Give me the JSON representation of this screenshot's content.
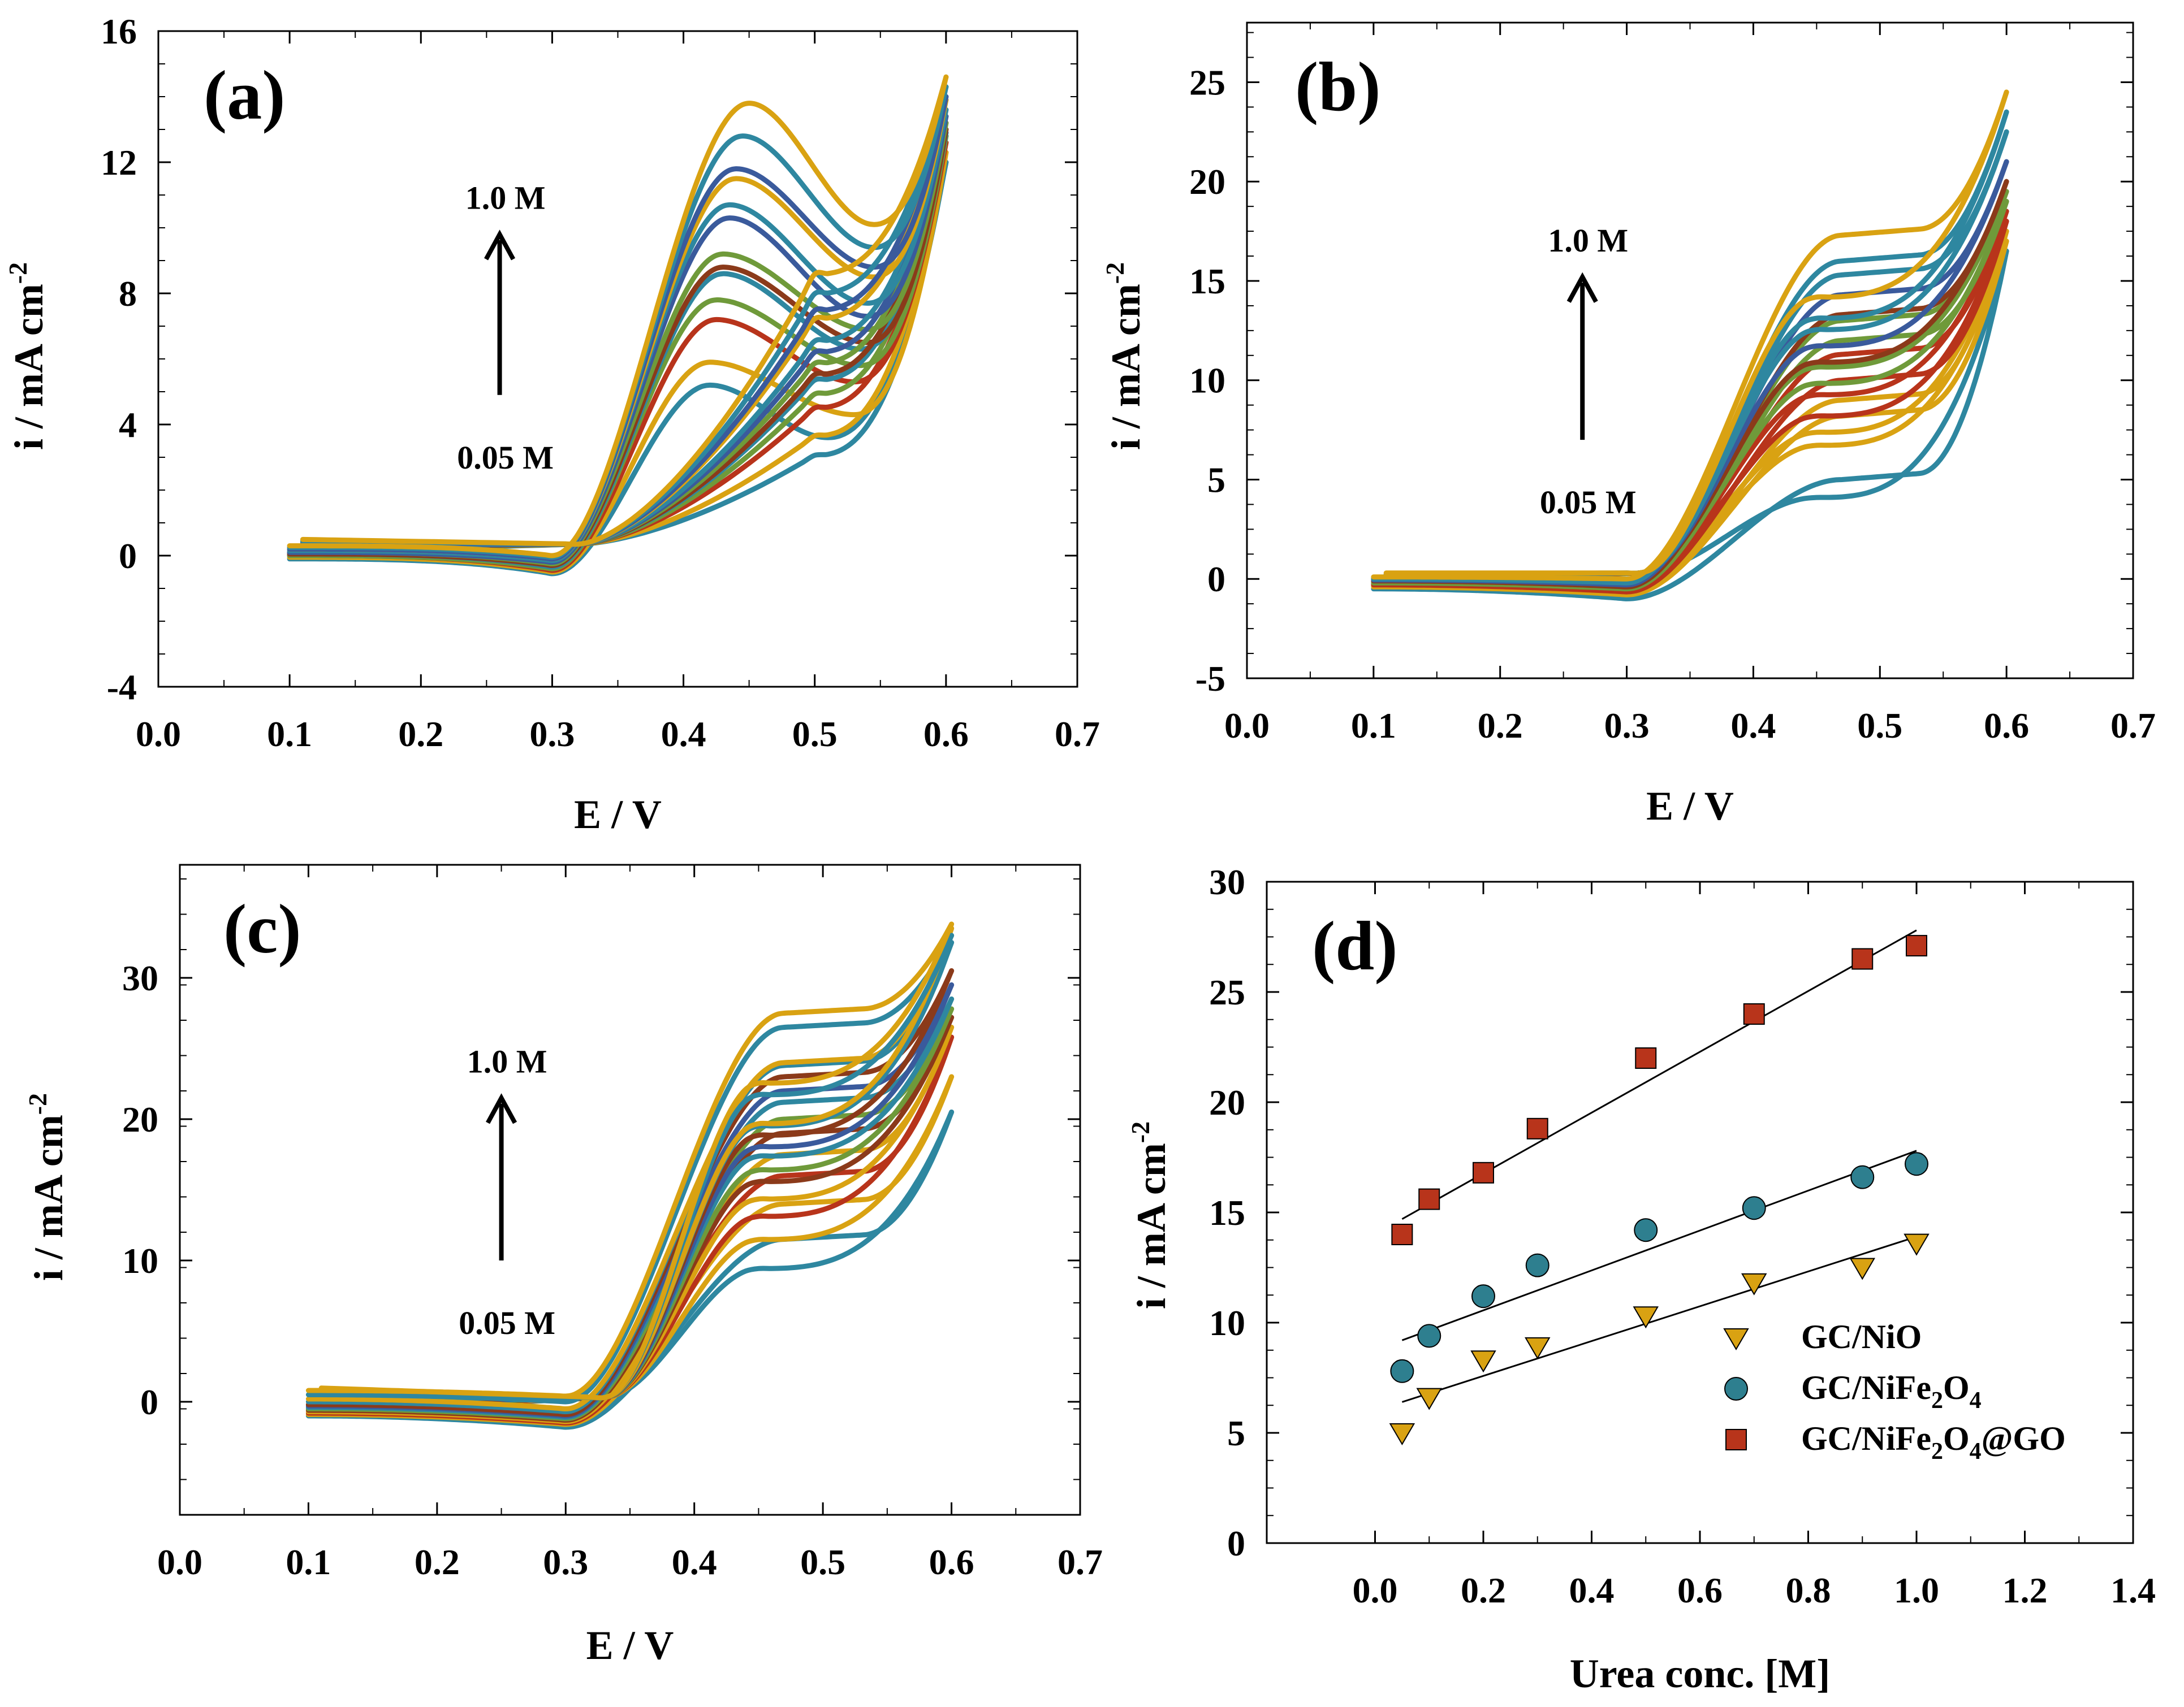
{
  "figure": {
    "colors": {
      "teal": "#2E87A0",
      "blue": "#3A5A9C",
      "green": "#6F9A3A",
      "brown": "#8B3A1A",
      "red": "#B8341B",
      "gold": "#D9A212",
      "square": "#B8341B",
      "circle": "#2E7F8F",
      "triangle": "#D9A212"
    }
  },
  "chart_data": [
    {
      "id": "a",
      "type": "line",
      "panel_label": "(a)",
      "xlabel": "E / V",
      "ylabel": "i / mA cm",
      "ylabel_sup": "-2",
      "xlim": [
        0.0,
        0.7
      ],
      "ylim": [
        -4,
        16
      ],
      "xticks": [
        0.0,
        0.1,
        0.2,
        0.3,
        0.4,
        0.5,
        0.6,
        0.7
      ],
      "xtick_labels": [
        "0.0",
        "0.1",
        "0.2",
        "0.3",
        "0.4",
        "0.5",
        "0.6",
        "0.7"
      ],
      "yticks": [
        -4,
        0,
        4,
        8,
        12,
        16
      ],
      "ytick_labels": [
        "-4",
        "0",
        "4",
        "8",
        "12",
        "16"
      ],
      "arrow": {
        "top_label": "1.0 M",
        "bottom_label": "0.05 M",
        "x": 0.26,
        "y_from": 4.9,
        "y_to": 9.8
      },
      "curves": [
        {
          "color": "teal",
          "peak": 5.2,
          "valley": 3.6,
          "end": 12.0,
          "pk": 0.42,
          "vl": 0.51,
          "base": -0.1,
          "dip": -0.55
        },
        {
          "color": "gold",
          "peak": 5.9,
          "valley": 4.3,
          "end": 12.3,
          "pk": 0.42,
          "vl": 0.53,
          "base": -0.05,
          "dip": -0.5
        },
        {
          "color": "red",
          "peak": 7.2,
          "valley": 5.3,
          "end": 12.6,
          "pk": 0.425,
          "vl": 0.53,
          "base": 0.0,
          "dip": -0.45
        },
        {
          "color": "green",
          "peak": 7.8,
          "valley": 5.8,
          "end": 12.8,
          "pk": 0.425,
          "vl": 0.535,
          "base": 0.0,
          "dip": -0.4
        },
        {
          "color": "teal",
          "peak": 8.6,
          "valley": 6.3,
          "end": 12.9,
          "pk": 0.43,
          "vl": 0.535,
          "base": 0.05,
          "dip": -0.35
        },
        {
          "color": "brown",
          "peak": 8.8,
          "valley": 6.5,
          "end": 13.0,
          "pk": 0.43,
          "vl": 0.54,
          "base": 0.05,
          "dip": -0.3
        },
        {
          "color": "green",
          "peak": 9.2,
          "valley": 6.9,
          "end": 13.2,
          "pk": 0.43,
          "vl": 0.54,
          "base": 0.1,
          "dip": -0.25
        },
        {
          "color": "blue",
          "peak": 10.3,
          "valley": 7.3,
          "end": 13.4,
          "pk": 0.435,
          "vl": 0.54,
          "base": 0.1,
          "dip": -0.2
        },
        {
          "color": "teal",
          "peak": 10.7,
          "valley": 7.7,
          "end": 13.6,
          "pk": 0.435,
          "vl": 0.54,
          "base": 0.15,
          "dip": -0.15
        },
        {
          "color": "gold",
          "peak": 11.5,
          "valley": 8.5,
          "end": 13.9,
          "pk": 0.44,
          "vl": 0.545,
          "base": 0.2,
          "dip": -0.1
        },
        {
          "color": "blue",
          "peak": 11.8,
          "valley": 8.8,
          "end": 14.0,
          "pk": 0.44,
          "vl": 0.545,
          "base": 0.2,
          "dip": -0.1
        },
        {
          "color": "teal",
          "peak": 12.8,
          "valley": 9.4,
          "end": 14.3,
          "pk": 0.445,
          "vl": 0.545,
          "base": 0.25,
          "dip": -0.05
        },
        {
          "color": "gold",
          "peak": 13.8,
          "valley": 10.1,
          "end": 14.6,
          "pk": 0.45,
          "vl": 0.545,
          "base": 0.3,
          "dip": 0.0
        }
      ]
    },
    {
      "id": "b",
      "type": "line",
      "panel_label": "(b)",
      "xlabel": "E / V",
      "ylabel": "i / mA cm",
      "ylabel_sup": "-2",
      "xlim": [
        0.0,
        0.7
      ],
      "ylim": [
        -5,
        28
      ],
      "xticks": [
        0.0,
        0.1,
        0.2,
        0.3,
        0.4,
        0.5,
        0.6,
        0.7
      ],
      "xtick_labels": [
        "0.0",
        "0.1",
        "0.2",
        "0.3",
        "0.4",
        "0.5",
        "0.6",
        "0.7"
      ],
      "yticks": [
        -5,
        0,
        5,
        10,
        15,
        20,
        25
      ],
      "ytick_labels": [
        "-5",
        "0",
        "5",
        "10",
        "15",
        "20",
        "25"
      ],
      "arrow": {
        "top_label": "1.0 M",
        "bottom_label": "0.05 M",
        "x": 0.265,
        "y_from": 7.0,
        "y_to": 15.2
      },
      "curves": [
        {
          "color": "teal",
          "plateau": 5.0,
          "end": 16.5,
          "base": -0.5,
          "dip": -1.0
        },
        {
          "color": "gold",
          "plateau": 8.2,
          "end": 17.0,
          "base": -0.4,
          "dip": -0.8
        },
        {
          "color": "gold",
          "plateau": 9.0,
          "end": 17.5,
          "base": -0.35,
          "dip": -0.75
        },
        {
          "color": "red",
          "plateau": 10.0,
          "end": 18.0,
          "base": -0.3,
          "dip": -0.65
        },
        {
          "color": "red",
          "plateau": 11.3,
          "end": 18.5,
          "base": -0.25,
          "dip": -0.6
        },
        {
          "color": "green",
          "plateau": 12.0,
          "end": 19.0,
          "base": -0.2,
          "dip": -0.5
        },
        {
          "color": "green",
          "plateau": 13.0,
          "end": 19.5,
          "base": -0.15,
          "dip": -0.45
        },
        {
          "color": "brown",
          "plateau": 13.3,
          "end": 20.0,
          "base": -0.1,
          "dip": -0.4
        },
        {
          "color": "blue",
          "plateau": 14.3,
          "end": 21.0,
          "base": -0.05,
          "dip": -0.3
        },
        {
          "color": "teal",
          "plateau": 15.3,
          "end": 22.5,
          "base": 0.0,
          "dip": -0.2
        },
        {
          "color": "teal",
          "plateau": 16.0,
          "end": 23.5,
          "base": 0.05,
          "dip": -0.1
        },
        {
          "color": "gold",
          "plateau": 17.3,
          "end": 24.5,
          "base": 0.1,
          "dip": 0.0
        }
      ]
    },
    {
      "id": "c",
      "type": "line",
      "panel_label": "(c)",
      "xlabel": "E / V",
      "ylabel": "i / mA cm",
      "ylabel_sup": "-2",
      "xlim": [
        0.0,
        0.7
      ],
      "ylim": [
        -8,
        38
      ],
      "xticks": [
        0.0,
        0.1,
        0.2,
        0.3,
        0.4,
        0.5,
        0.6,
        0.7
      ],
      "xtick_labels": [
        "0.0",
        "0.1",
        "0.2",
        "0.3",
        "0.4",
        "0.5",
        "0.6",
        "0.7"
      ],
      "yticks": [
        0,
        10,
        20,
        30
      ],
      "ytick_labels": [
        "0",
        "10",
        "20",
        "30"
      ],
      "arrow": {
        "top_label": "1.0 M",
        "bottom_label": "0.05 M",
        "x": 0.25,
        "y_from": 10.0,
        "y_to": 21.5
      },
      "curves": [
        {
          "color": "teal",
          "plateau": 11.5,
          "end": 20.5,
          "base": -1.0,
          "dip": -1.8
        },
        {
          "color": "gold",
          "plateau": 14.0,
          "end": 23.0,
          "base": -0.9,
          "dip": -1.6
        },
        {
          "color": "red",
          "plateau": 16.0,
          "end": 25.8,
          "base": -0.8,
          "dip": -1.5
        },
        {
          "color": "gold",
          "plateau": 17.5,
          "end": 26.5,
          "base": -0.7,
          "dip": -1.4
        },
        {
          "color": "brown",
          "plateau": 19.0,
          "end": 27.2,
          "base": -0.6,
          "dip": -1.3
        },
        {
          "color": "green",
          "plateau": 20.0,
          "end": 27.8,
          "base": -0.5,
          "dip": -1.2
        },
        {
          "color": "teal",
          "plateau": 21.2,
          "end": 28.5,
          "base": -0.4,
          "dip": -1.1
        },
        {
          "color": "blue",
          "plateau": 22.0,
          "end": 29.5,
          "base": -0.3,
          "dip": -1.0
        },
        {
          "color": "brown",
          "plateau": 23.0,
          "end": 30.5,
          "base": -0.2,
          "dip": -0.9
        },
        {
          "color": "teal",
          "plateau": 23.8,
          "end": 32.5,
          "base": 0.0,
          "dip": -0.7
        },
        {
          "color": "gold",
          "plateau": 24.0,
          "end": 33.5,
          "base": 0.2,
          "dip": -0.5
        },
        {
          "color": "teal",
          "plateau": 26.5,
          "end": 33.0,
          "base": 0.5,
          "dip": 0.0
        },
        {
          "color": "gold",
          "plateau": 27.5,
          "end": 33.8,
          "base": 0.8,
          "dip": 0.4
        }
      ]
    },
    {
      "id": "d",
      "type": "scatter",
      "panel_label": "(d)",
      "xlabel": "Urea conc. [M]",
      "ylabel": "i / mA cm",
      "ylabel_sup": "-2",
      "xlim": [
        -0.2,
        1.4
      ],
      "ylim": [
        0,
        30
      ],
      "xticks": [
        0.0,
        0.2,
        0.4,
        0.6,
        0.8,
        1.0,
        1.2,
        1.4
      ],
      "xtick_labels": [
        "0.0",
        "0.2",
        "0.4",
        "0.6",
        "0.8",
        "1.0",
        "1.2",
        "1.4"
      ],
      "yticks": [
        0,
        5,
        10,
        15,
        20,
        25,
        30
      ],
      "ytick_labels": [
        "0",
        "5",
        "10",
        "15",
        "20",
        "25",
        "30"
      ],
      "x": [
        0.05,
        0.1,
        0.2,
        0.3,
        0.5,
        0.7,
        0.9,
        1.0
      ],
      "series": [
        {
          "name": "GC/NiO",
          "legend_base": "GC/NiO",
          "legend_parts": [],
          "marker": "triangle",
          "color": "triangle",
          "values": [
            5.0,
            6.6,
            8.3,
            8.9,
            10.3,
            11.8,
            12.5,
            13.6
          ],
          "fit": {
            "x": [
              0.05,
              1.0
            ],
            "y": [
              6.4,
              13.9
            ]
          }
        },
        {
          "name": "GC/NiFe2O4",
          "legend_base": "GC/NiFe",
          "legend_parts": [
            {
              "t": "2",
              "sub": true
            },
            {
              "t": "O",
              "sub": false
            },
            {
              "t": "4",
              "sub": true
            }
          ],
          "marker": "circle",
          "color": "circle",
          "values": [
            7.8,
            9.4,
            11.2,
            12.6,
            14.2,
            15.2,
            16.6,
            17.2
          ],
          "fit": {
            "x": [
              0.05,
              1.0
            ],
            "y": [
              9.2,
              17.8
            ]
          }
        },
        {
          "name": "GC/NiFe2O4@GO",
          "legend_base": "GC/NiFe",
          "legend_parts": [
            {
              "t": "2",
              "sub": true
            },
            {
              "t": "O",
              "sub": false
            },
            {
              "t": "4",
              "sub": true
            },
            {
              "t": "@GO",
              "sub": false
            }
          ],
          "marker": "square",
          "color": "square",
          "values": [
            14.0,
            15.6,
            16.8,
            18.8,
            22.0,
            24.0,
            26.5,
            27.1
          ],
          "fit": {
            "x": [
              0.05,
              1.0
            ],
            "y": [
              14.7,
              27.8
            ]
          }
        }
      ]
    }
  ]
}
